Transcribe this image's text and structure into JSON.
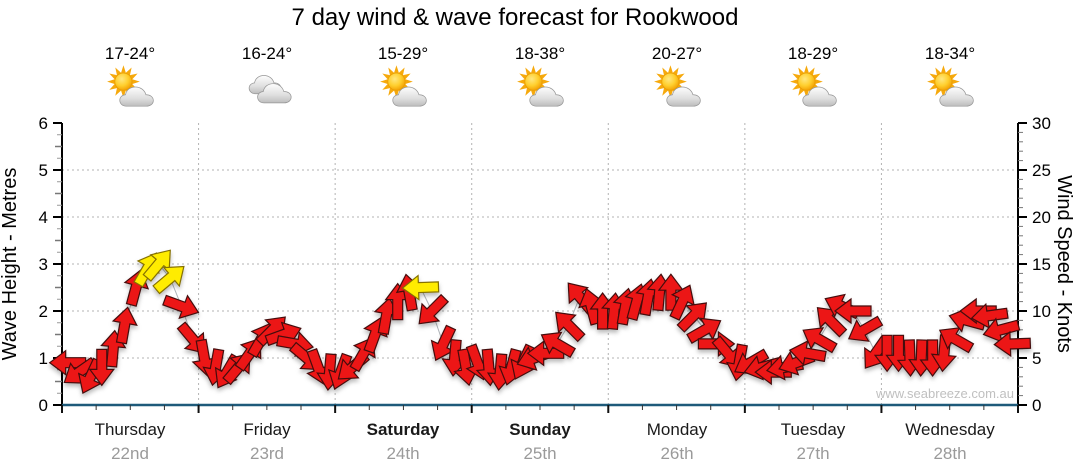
{
  "title": "7 day wind & wave forecast for Rookwood",
  "watermark": "www.seabreeze.com.au",
  "days": [
    {
      "name": "Thursday",
      "date": "22nd",
      "temp": "17-24°",
      "icon": "sun-cloud",
      "bold": false
    },
    {
      "name": "Friday",
      "date": "23rd",
      "temp": "16-24°",
      "icon": "clouds",
      "bold": false
    },
    {
      "name": "Saturday",
      "date": "24th",
      "temp": "15-29°",
      "icon": "sun-cloud",
      "bold": true
    },
    {
      "name": "Sunday",
      "date": "25th",
      "temp": "18-38°",
      "icon": "sun-cloud",
      "bold": true
    },
    {
      "name": "Monday",
      "date": "26th",
      "temp": "20-27°",
      "icon": "sun-cloud",
      "bold": false
    },
    {
      "name": "Tuesday",
      "date": "27th",
      "temp": "18-29°",
      "icon": "sun-cloud",
      "bold": false
    },
    {
      "name": "Wednesday",
      "date": "28th",
      "temp": "18-34°",
      "icon": "sun-cloud",
      "bold": false
    }
  ],
  "axes": {
    "left": {
      "label": "Wave Height - Metres",
      "ticks": [
        0,
        1,
        2,
        3,
        4,
        5,
        6
      ],
      "range": [
        0,
        6
      ]
    },
    "right": {
      "label": "Wind Speed - Knots",
      "ticks": [
        0,
        5,
        10,
        15,
        20,
        25,
        30
      ],
      "range": [
        0,
        30
      ]
    }
  },
  "colors": {
    "arrow_red": "#ec1313",
    "arrow_yellow": "#ffec00",
    "arrow_red_outline": "#441010",
    "arrow_yellow_outline": "#857000",
    "baseline_blue": "#1e5a7a",
    "grid_gray": "#b3b3b3",
    "date_gray": "#9a9a9a",
    "watermark_gray": "#c0c0c0"
  },
  "chart_data": {
    "type": "wind-arrow-time-series",
    "title": "7 day wind & wave forecast for Rookwood",
    "categories": [
      "Thursday 22nd",
      "Friday 23rd",
      "Saturday 24th",
      "Sunday 25th",
      "Monday 26th",
      "Tuesday 27th",
      "Wednesday 28th"
    ],
    "y_left": {
      "label": "Wave Height - Metres",
      "range": [
        0,
        6
      ],
      "gridlines_every": 1
    },
    "y_right": {
      "label": "Wind Speed - Knots",
      "range": [
        0,
        30
      ],
      "major_tick_every": 5
    },
    "grid": "dotted horizontal each metre, dotted vertical each day boundary",
    "wave_height_note": "wave height trace lies flat along the 0 m baseline (dark blue line)",
    "arrows_format": "[day_index, slot_of_12_per_day, wind_speed_knots, direction_deg_cw_from_up, yellow_flag]",
    "arrows": [
      [
        0,
        0,
        4.5,
        270,
        0
      ],
      [
        0,
        1,
        3.5,
        235,
        0
      ],
      [
        0,
        2,
        3,
        205,
        0
      ],
      [
        0,
        3,
        4,
        180,
        0
      ],
      [
        0,
        4,
        6,
        5,
        0
      ],
      [
        0,
        5,
        8.5,
        10,
        0
      ],
      [
        0,
        6,
        12.5,
        15,
        0
      ],
      [
        0,
        7,
        14.5,
        30,
        1
      ],
      [
        0,
        8,
        15,
        40,
        1
      ],
      [
        0,
        9,
        13.5,
        50,
        1
      ],
      [
        0,
        10,
        10.5,
        110,
        0
      ],
      [
        0,
        11,
        7,
        140,
        0
      ],
      [
        1,
        0,
        5,
        170,
        0
      ],
      [
        1,
        1,
        4,
        190,
        0
      ],
      [
        1,
        2,
        3.5,
        210,
        0
      ],
      [
        1,
        3,
        4,
        40,
        0
      ],
      [
        1,
        4,
        5.5,
        35,
        0
      ],
      [
        1,
        5,
        7,
        30,
        0
      ],
      [
        1,
        6,
        8,
        45,
        0
      ],
      [
        1,
        7,
        7.5,
        70,
        0
      ],
      [
        1,
        8,
        6.5,
        100,
        0
      ],
      [
        1,
        9,
        5,
        130,
        0
      ],
      [
        1,
        10,
        4,
        160,
        0
      ],
      [
        1,
        11,
        3.5,
        185,
        0
      ],
      [
        2,
        0,
        3.5,
        200,
        0
      ],
      [
        2,
        1,
        4,
        230,
        0
      ],
      [
        2,
        2,
        5.5,
        30,
        0
      ],
      [
        2,
        3,
        7.5,
        20,
        0
      ],
      [
        2,
        4,
        9.5,
        10,
        0
      ],
      [
        2,
        5,
        11,
        0,
        0
      ],
      [
        2,
        6,
        12,
        350,
        0
      ],
      [
        2,
        7,
        12.5,
        268,
        1
      ],
      [
        2,
        8,
        10,
        225,
        0
      ],
      [
        2,
        9,
        6.5,
        205,
        0
      ],
      [
        2,
        10,
        5,
        185,
        0
      ],
      [
        2,
        11,
        4,
        170,
        0
      ],
      [
        3,
        0,
        4.5,
        160,
        0
      ],
      [
        3,
        1,
        4,
        175,
        0
      ],
      [
        3,
        2,
        3.5,
        185,
        0
      ],
      [
        3,
        3,
        4,
        195,
        0
      ],
      [
        3,
        4,
        4.5,
        205,
        0
      ],
      [
        3,
        5,
        5,
        250,
        0
      ],
      [
        3,
        6,
        5.5,
        270,
        0
      ],
      [
        3,
        7,
        6.5,
        300,
        0
      ],
      [
        3,
        8,
        8.5,
        315,
        0
      ],
      [
        3,
        9,
        11.5,
        320,
        0
      ],
      [
        3,
        10,
        10.5,
        345,
        0
      ],
      [
        3,
        11,
        10,
        0,
        0
      ],
      [
        4,
        0,
        10,
        5,
        0
      ],
      [
        4,
        1,
        10.5,
        10,
        0
      ],
      [
        4,
        2,
        11,
        15,
        0
      ],
      [
        4,
        3,
        11.5,
        10,
        0
      ],
      [
        4,
        4,
        12,
        5,
        0
      ],
      [
        4,
        5,
        12,
        0,
        0
      ],
      [
        4,
        6,
        11,
        25,
        0
      ],
      [
        4,
        7,
        9.5,
        45,
        0
      ],
      [
        4,
        8,
        8,
        60,
        0
      ],
      [
        4,
        9,
        6.5,
        90,
        0
      ],
      [
        4,
        10,
        5.5,
        140,
        0
      ],
      [
        4,
        11,
        4.5,
        190,
        0
      ],
      [
        5,
        0,
        4.5,
        240,
        0
      ],
      [
        5,
        1,
        4,
        255,
        0
      ],
      [
        5,
        2,
        3.5,
        270,
        0
      ],
      [
        5,
        3,
        4,
        260,
        0
      ],
      [
        5,
        4,
        4.5,
        250,
        0
      ],
      [
        5,
        5,
        5.5,
        280,
        0
      ],
      [
        5,
        6,
        7,
        300,
        0
      ],
      [
        5,
        7,
        9,
        315,
        0
      ],
      [
        5,
        8,
        10.5,
        295,
        0
      ],
      [
        5,
        9,
        10,
        270,
        0
      ],
      [
        5,
        10,
        8,
        240,
        0
      ],
      [
        5,
        11,
        5.5,
        215,
        0
      ],
      [
        6,
        0,
        5.5,
        180,
        0
      ],
      [
        6,
        1,
        5.5,
        180,
        0
      ],
      [
        6,
        2,
        5,
        178,
        0
      ],
      [
        6,
        3,
        5,
        182,
        0
      ],
      [
        6,
        4,
        5,
        180,
        0
      ],
      [
        6,
        5,
        5.5,
        185,
        0
      ],
      [
        6,
        6,
        7,
        300,
        0
      ],
      [
        6,
        7,
        9,
        285,
        0
      ],
      [
        6,
        8,
        10,
        270,
        0
      ],
      [
        6,
        9,
        9.5,
        262,
        0
      ],
      [
        6,
        10,
        8,
        255,
        0
      ],
      [
        6,
        11,
        6.5,
        268,
        0
      ]
    ]
  }
}
